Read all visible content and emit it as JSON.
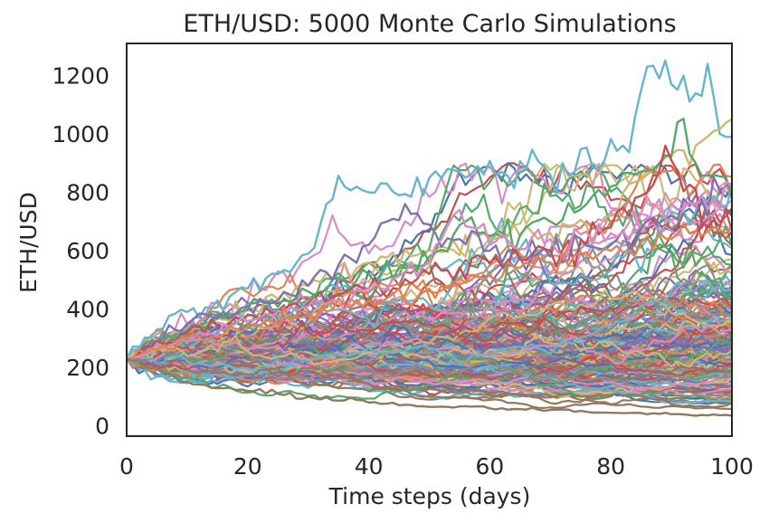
{
  "chart_data": {
    "type": "line",
    "title": "ETH/USD: 5000 Monte Carlo Simulations",
    "xlabel": "Time steps (days)",
    "ylabel": "ETH/USD",
    "xlim": [
      0,
      100
    ],
    "ylim": [
      -35,
      1310
    ],
    "xticks": [
      0,
      20,
      40,
      60,
      80,
      100
    ],
    "yticks": [
      0,
      200,
      400,
      600,
      800,
      1000,
      1200
    ],
    "grid": false,
    "legend": "none",
    "start_value": 230,
    "num_simulations": 5000,
    "colors": [
      "#4c72b0",
      "#dd8452",
      "#55a868",
      "#c44e52",
      "#8172b3",
      "#937860",
      "#da8bc3",
      "#8c8c8c",
      "#ccb974",
      "#64b5cd"
    ],
    "series": [
      {
        "color": "#64b5cd",
        "x": [
          0,
          5,
          10,
          15,
          20,
          25,
          30,
          33,
          36,
          40,
          45,
          50,
          53,
          56,
          58,
          62,
          66,
          70,
          74,
          78,
          82,
          86,
          88,
          90,
          92,
          94,
          96,
          98,
          100
        ],
        "y": [
          230,
          330,
          390,
          430,
          470,
          520,
          590,
          760,
          820,
          800,
          790,
          850,
          880,
          850,
          890,
          870,
          880,
          860,
          870,
          880,
          960,
          1230,
          1190,
          1170,
          1200,
          1140,
          1240,
          1000,
          990
        ]
      },
      {
        "color": "#ccb974",
        "x": [
          0,
          10,
          20,
          30,
          40,
          50,
          60,
          70,
          80,
          86,
          90,
          94,
          97,
          100
        ],
        "y": [
          230,
          330,
          400,
          480,
          560,
          600,
          640,
          660,
          720,
          860,
          930,
          960,
          1010,
          1050
        ]
      },
      {
        "color": "#55a868",
        "x": [
          0,
          10,
          20,
          30,
          40,
          50,
          56,
          60,
          66,
          70,
          76,
          80,
          84,
          88,
          91,
          94,
          97,
          100
        ],
        "y": [
          230,
          330,
          400,
          460,
          520,
          560,
          700,
          650,
          680,
          700,
          760,
          820,
          860,
          900,
          1040,
          900,
          860,
          780
        ]
      },
      {
        "color": "#8172b3",
        "x": [
          0,
          10,
          20,
          30,
          40,
          43,
          46,
          50,
          55,
          60,
          70,
          80,
          90,
          100
        ],
        "y": [
          230,
          350,
          410,
          480,
          620,
          700,
          760,
          690,
          640,
          600,
          580,
          620,
          720,
          830
        ]
      },
      {
        "color": "#c44e52",
        "x": [
          0,
          10,
          20,
          30,
          40,
          50,
          60,
          70,
          80,
          86,
          90,
          95,
          100
        ],
        "y": [
          230,
          320,
          380,
          420,
          470,
          520,
          560,
          600,
          680,
          800,
          910,
          700,
          730
        ]
      },
      {
        "color": "#da8bc3",
        "x": [
          0,
          10,
          20,
          30,
          40,
          50,
          55,
          60,
          70,
          80,
          90,
          100
        ],
        "y": [
          230,
          300,
          360,
          410,
          470,
          560,
          740,
          620,
          640,
          660,
          760,
          820
        ]
      },
      {
        "color": "#dd8452",
        "x": [
          0,
          10,
          20,
          30,
          40,
          50,
          60,
          70,
          80,
          90,
          100
        ],
        "y": [
          230,
          300,
          340,
          380,
          430,
          470,
          520,
          560,
          600,
          640,
          680
        ]
      },
      {
        "color": "#937860",
        "x": [
          0,
          10,
          20,
          30,
          40,
          50,
          60,
          70,
          80,
          90,
          100
        ],
        "y": [
          230,
          150,
          120,
          100,
          80,
          65,
          60,
          55,
          45,
          40,
          35
        ]
      }
    ],
    "bundle": {
      "count": 200,
      "note_colors": "cycled"
    }
  }
}
